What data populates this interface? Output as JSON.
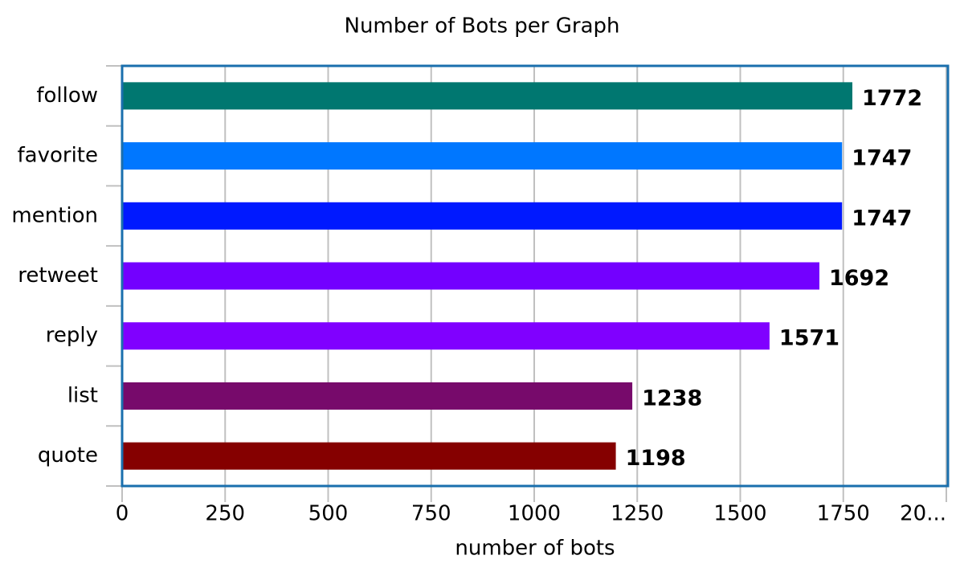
{
  "chart_data": {
    "type": "hbar",
    "title": "Number of Bots per Graph",
    "x_label": "number of bots",
    "categories": [
      "follow",
      "favorite",
      "mention",
      "retweet",
      "reply",
      "list",
      "quote"
    ],
    "values": [
      1772,
      1747,
      1747,
      1692,
      1571,
      1238,
      1198
    ],
    "colors": [
      "#007770",
      "#0077ff",
      "#0019ff",
      "#7300ff",
      "#8000ff",
      "#770a6b",
      "#850000"
    ],
    "xlim": [
      0,
      2000
    ],
    "xticks": [
      0,
      250,
      500,
      750,
      1000,
      1250,
      1500,
      1750,
      {
        "value": 2000,
        "label": "20..."
      }
    ],
    "grid": true
  }
}
